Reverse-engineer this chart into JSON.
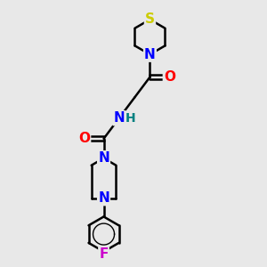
{
  "bg_color": "#e8e8e8",
  "bond_color": "#000000",
  "bond_width": 1.8,
  "atom_colors": {
    "S": "#cccc00",
    "N": "#0000ff",
    "O": "#ff0000",
    "F": "#cc00cc",
    "H": "#008080",
    "C": "#000000"
  },
  "font_size": 10,
  "fig_size": [
    3.0,
    3.0
  ],
  "dpi": 100,
  "xlim": [
    0,
    10
  ],
  "ylim": [
    0,
    13
  ]
}
